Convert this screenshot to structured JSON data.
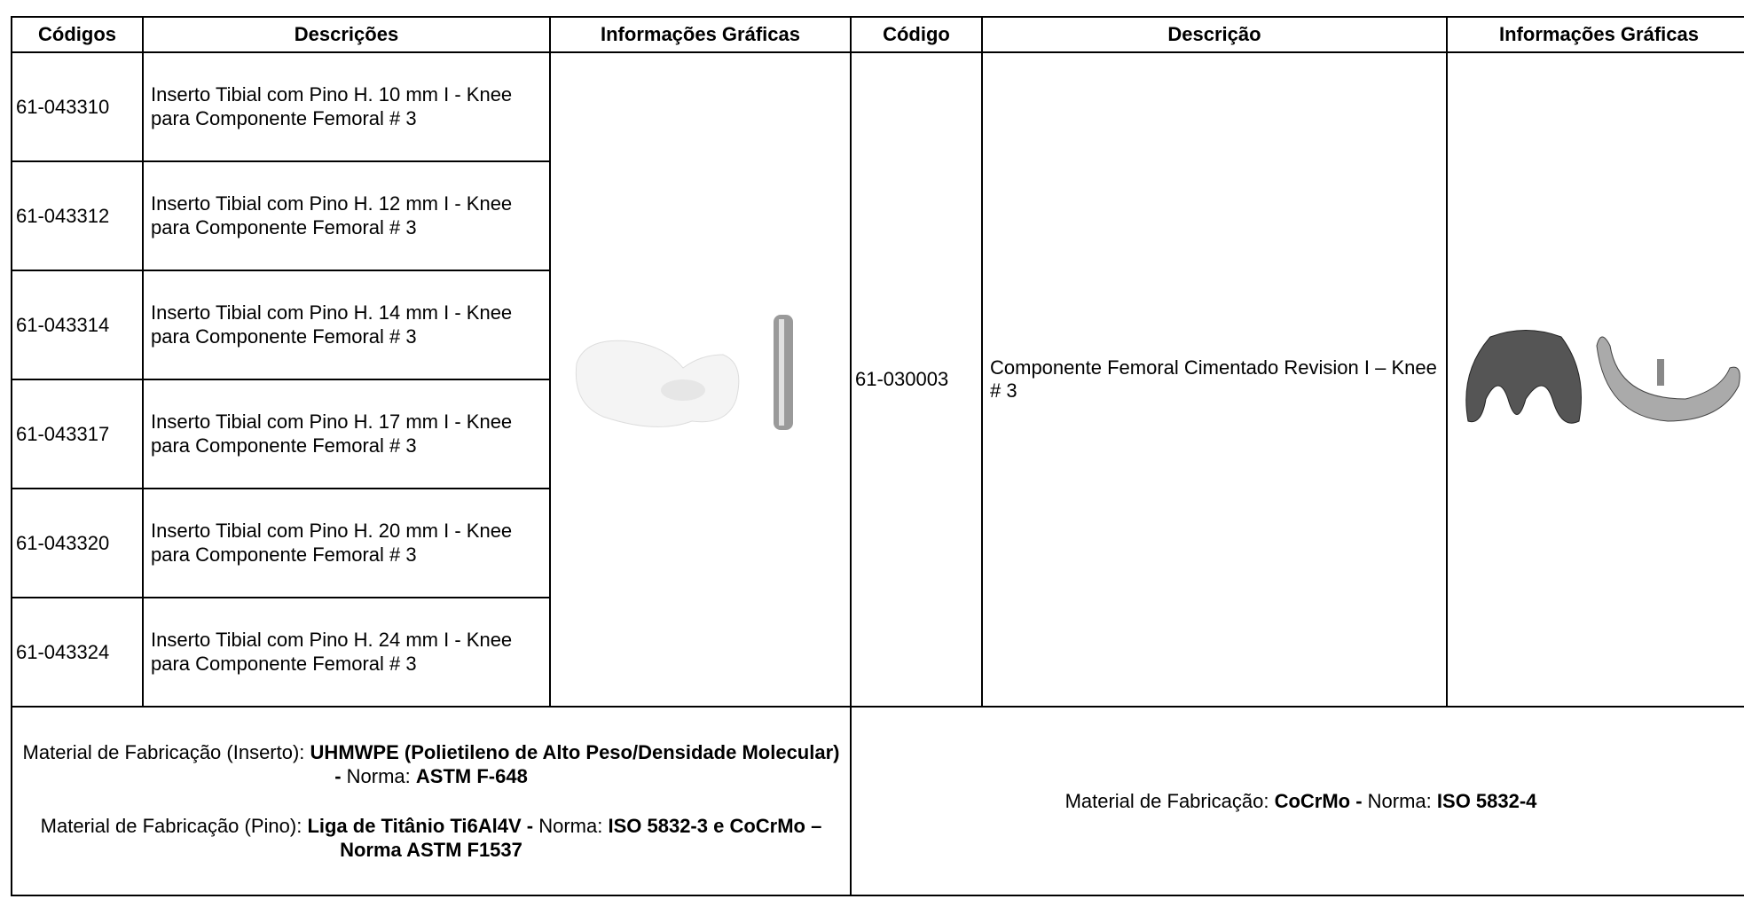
{
  "headers_left": [
    "Códigos",
    "Descrições",
    "Informações Gráficas"
  ],
  "headers_right": [
    "Código",
    "Descrição",
    "Informações Gráficas"
  ],
  "left_rows": [
    {
      "code": "61-043310",
      "description": "Inserto Tibial com Pino H. 10 mm I - Knee para Componente Femoral # 3"
    },
    {
      "code": "61-043312",
      "description": "Inserto Tibial com Pino H. 12 mm I - Knee para Componente Femoral # 3"
    },
    {
      "code": "61-043314",
      "description": "Inserto Tibial com Pino H. 14 mm I - Knee para Componente Femoral # 3"
    },
    {
      "code": "61-043317",
      "description": "Inserto Tibial com Pino H. 17 mm I - Knee para Componente Femoral # 3"
    },
    {
      "code": "61-043320",
      "description": "Inserto Tibial com Pino H. 20 mm I - Knee para Componente Femoral # 3"
    },
    {
      "code": "61-043324",
      "description": "Inserto Tibial com Pino H. 24 mm I - Knee para Componente Femoral # 3"
    }
  ],
  "right_item": {
    "code": "61-030003",
    "description": "Componente Femoral Cimentado Revision I – Knee # 3"
  },
  "footer_left": [
    [
      {
        "text": "Material de Fabricação (Inserto): ",
        "bold": false
      },
      {
        "text": "UHMWPE (Polietileno de Alto Peso/Densidade Molecular) - ",
        "bold": true
      },
      {
        "text": "Norma: ",
        "bold": false
      },
      {
        "text": "ASTM F-648",
        "bold": true
      }
    ],
    [
      {
        "text": "Material de Fabricação (Pino): ",
        "bold": false
      },
      {
        "text": "Liga de Titânio Ti6Al4V - ",
        "bold": true
      },
      {
        "text": "Norma: ",
        "bold": false
      },
      {
        "text": "ISO 5832-3 e CoCrMo – Norma ASTM F1537",
        "bold": true
      }
    ]
  ],
  "footer_right": [
    [
      {
        "text": "Material de Fabricação: ",
        "bold": false
      },
      {
        "text": "CoCrMo - ",
        "bold": true
      },
      {
        "text": "Norma: ",
        "bold": false
      },
      {
        "text": "ISO 5832-4",
        "bold": true
      }
    ]
  ]
}
